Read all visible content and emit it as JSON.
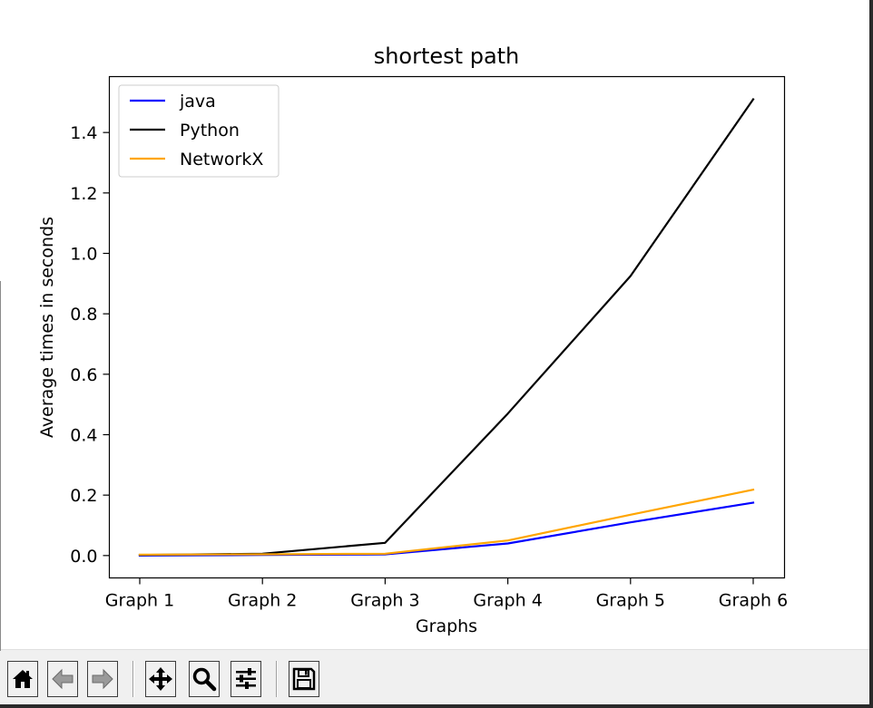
{
  "chart_data": {
    "type": "line",
    "title": "shortest path",
    "xlabel": "Graphs",
    "ylabel": "Average times in seconds",
    "categories": [
      "Graph 1",
      "Graph 2",
      "Graph 3",
      "Graph 4",
      "Graph 5",
      "Graph 6"
    ],
    "ylim": [
      -0.074,
      1.585
    ],
    "yticks": [
      0.0,
      0.2,
      0.4,
      0.6,
      0.8,
      1.0,
      1.2,
      1.4
    ],
    "ytick_labels": [
      "0.0",
      "0.2",
      "0.4",
      "0.6",
      "0.8",
      "1.0",
      "1.2",
      "1.4"
    ],
    "grid": false,
    "legend_position": "upper-left",
    "series": [
      {
        "name": "java",
        "color": "#0000ff",
        "values": [
          0.0,
          0.002,
          0.004,
          0.04,
          0.11,
          0.175
        ]
      },
      {
        "name": "Python",
        "color": "#000000",
        "values": [
          0.002,
          0.006,
          0.042,
          0.47,
          0.925,
          1.51
        ]
      },
      {
        "name": "NetworkX",
        "color": "#ffa500",
        "values": [
          0.003,
          0.004,
          0.006,
          0.05,
          0.135,
          0.218
        ]
      }
    ]
  },
  "toolbar": {
    "buttons": [
      {
        "name": "home-button",
        "icon": "home-icon"
      },
      {
        "name": "back-button",
        "icon": "arrow-left-icon"
      },
      {
        "name": "forward-button",
        "icon": "arrow-right-icon"
      },
      {
        "name": "pan-button",
        "icon": "move-icon"
      },
      {
        "name": "zoom-button",
        "icon": "magnifier-icon"
      },
      {
        "name": "configure-subplots-button",
        "icon": "sliders-icon"
      },
      {
        "name": "save-button",
        "icon": "floppy-disk-icon"
      }
    ]
  }
}
